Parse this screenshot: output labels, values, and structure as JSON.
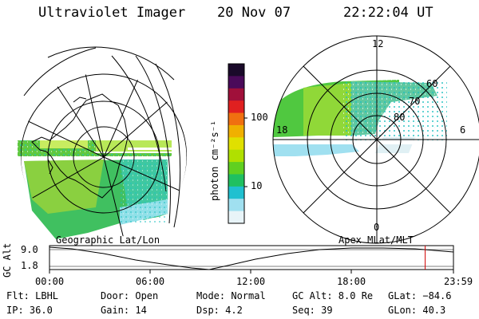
{
  "header": {
    "instrument": "Ultraviolet Imager",
    "date": "20 Nov 07",
    "time": "22:22:04 UT"
  },
  "left_panel": {
    "label": "Geographic Lat/Lon"
  },
  "right_panel": {
    "label": "Apex MLat/MLT",
    "mlt_labels": [
      "12",
      "18",
      "0",
      "6"
    ],
    "mlat_labels": [
      "60",
      "70",
      "80"
    ]
  },
  "colorbar": {
    "unit_label": "photon cm⁻²s⁻¹",
    "ticks": [
      "100",
      "10"
    ],
    "scale": "log",
    "colors": [
      "#1a0a2a",
      "#4a0a5a",
      "#a0103a",
      "#e02020",
      "#f07010",
      "#f0b000",
      "#e0e000",
      "#b0e000",
      "#60d020",
      "#20c060",
      "#20c0d0",
      "#a0e0f0",
      "#e8f4f8"
    ]
  },
  "timeline": {
    "ylabel": "GC Alt",
    "yticks": [
      "9.0",
      "1.8"
    ],
    "xticks": [
      "00:00",
      "06:00",
      "12:00",
      "18:00",
      "23:59"
    ],
    "current_fraction": 0.93
  },
  "info": {
    "flt": "Flt: LBHL",
    "ip": "IP: 36.0",
    "door": "Door: Open",
    "gain": "Gain: 14",
    "mode": "Mode: Normal",
    "dsp": "Dsp:    4.2",
    "gcalt": "GC Alt: 8.0 Re",
    "seq": "Seq: 39",
    "glat": "GLat: −84.6",
    "glon": "GLon:  40.3"
  }
}
